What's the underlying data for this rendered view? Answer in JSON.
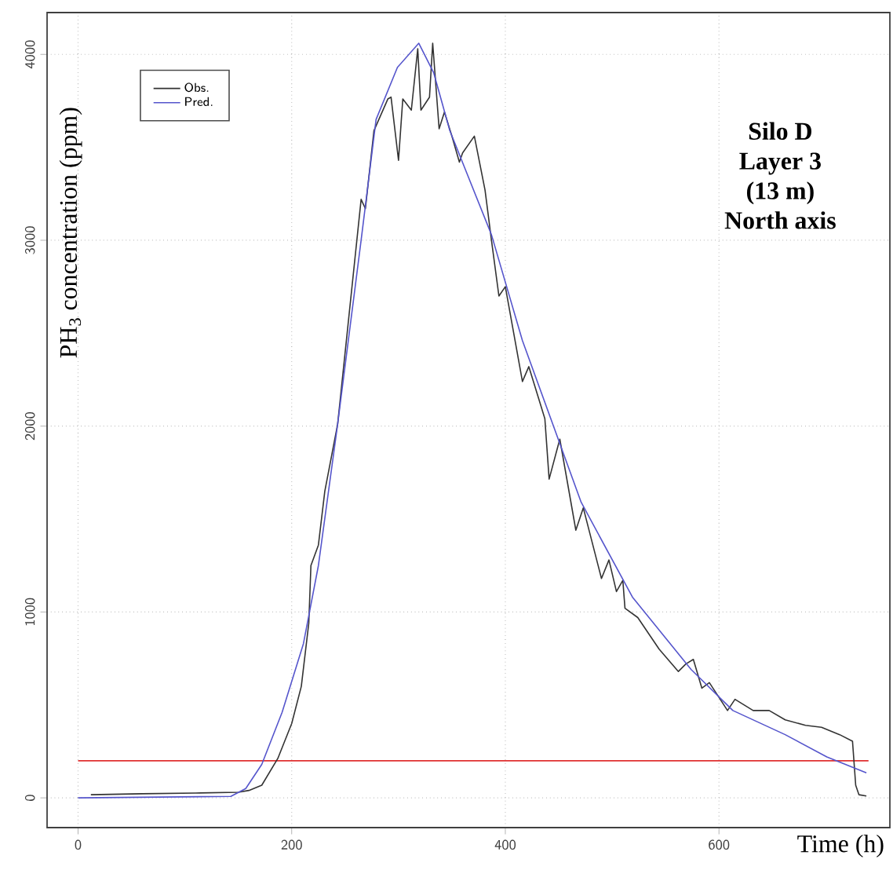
{
  "chart_data": {
    "type": "line",
    "xlabel": "Time (h)",
    "ylabel": "PH$_{3}$ concentration (ppm)",
    "annotations": [
      "Silo D",
      "Layer 3",
      "(13 m)",
      "North axis"
    ],
    "xlim": [
      -29,
      760
    ],
    "ylim": [
      -160,
      4225
    ],
    "xticks": [
      0,
      200,
      400,
      600
    ],
    "yticks": [
      0,
      1000,
      2000,
      3000,
      4000
    ],
    "grid": true,
    "legend": "top left",
    "marker": "none",
    "line_style": "solid",
    "ref_lines": [
      {
        "axis": "y",
        "value": 200,
        "color": "#e03030"
      }
    ],
    "series": [
      {
        "name": "Obs.",
        "color": "#333333",
        "x": [
          12,
          60,
          110,
          150,
          160,
          172,
          187,
          200,
          209,
          216,
          218,
          225,
          231,
          243,
          265,
          269,
          277,
          290,
          293,
          300,
          304,
          312,
          318,
          321,
          329,
          332,
          338,
          343,
          350,
          357,
          360,
          371,
          381,
          387,
          394,
          400,
          416,
          422,
          437,
          441,
          451,
          466,
          473,
          490,
          497,
          504,
          510,
          512,
          524,
          544,
          562,
          569,
          576,
          584,
          591,
          608,
          615,
          632,
          647,
          662,
          681,
          696,
          713,
          725,
          728,
          731,
          738
        ],
        "values": [
          17,
          22,
          26,
          30,
          40,
          68,
          212,
          400,
          600,
          940,
          1250,
          1360,
          1650,
          2010,
          3220,
          3170,
          3590,
          3760,
          3770,
          3430,
          3760,
          3700,
          4030,
          3700,
          3770,
          4060,
          3600,
          3690,
          3560,
          3420,
          3470,
          3560,
          3270,
          3000,
          2700,
          2750,
          2240,
          2320,
          2040,
          1715,
          1930,
          1440,
          1560,
          1180,
          1280,
          1110,
          1170,
          1020,
          970,
          800,
          680,
          720,
          745,
          590,
          620,
          470,
          530,
          470,
          470,
          420,
          390,
          380,
          340,
          305,
          68,
          17,
          10
        ]
      },
      {
        "name": "Pred.",
        "color": "#5555cc",
        "x": [
          0,
          143,
          157,
          172,
          191,
          211,
          225,
          243,
          265,
          279,
          299,
          319,
          333,
          348,
          387,
          416,
          471,
          519,
          574,
          613,
          662,
          701,
          738
        ],
        "values": [
          0,
          8,
          50,
          180,
          460,
          830,
          1250,
          2010,
          3000,
          3650,
          3930,
          4060,
          3900,
          3590,
          3030,
          2460,
          1590,
          1080,
          690,
          470,
          340,
          220,
          135
        ]
      }
    ]
  }
}
